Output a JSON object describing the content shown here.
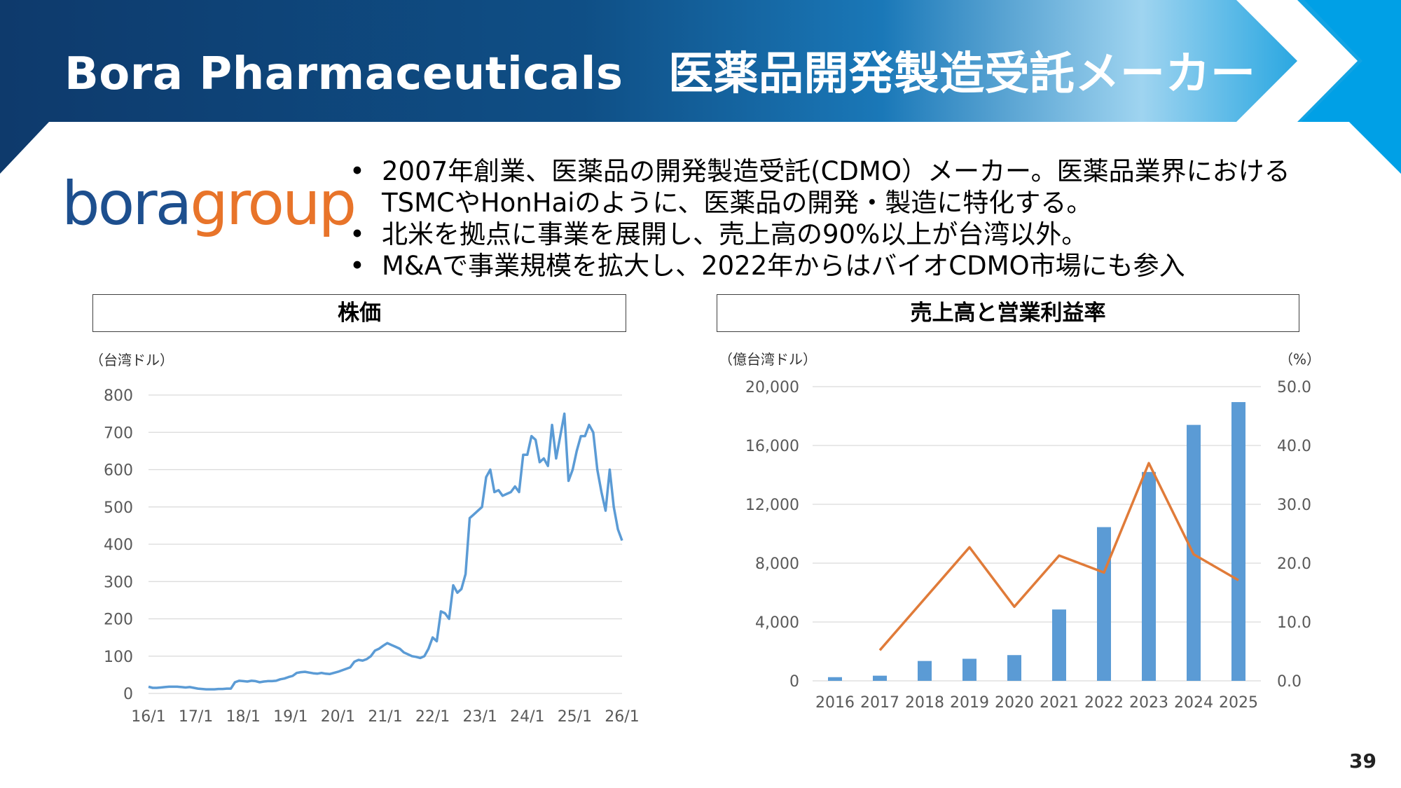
{
  "slide": {
    "title": "Bora Pharmaceuticals　医薬品開発製造受託メーカー",
    "logo": {
      "part1": "bora",
      "part2": "group"
    },
    "bullets": [
      "2007年創業、医薬品の開発製造受託(CDMO）メーカー。医薬品業界における",
      "TSMCやHonHaiのように、医薬品の開発・製造に特化する。",
      "北米を拠点に事業を展開し、売上高の90%以上が台湾以外。",
      "M&Aで事業規模を拡大し、2022年からはバイオCDMO市場にも参入"
    ],
    "page_number": "39",
    "colors": {
      "header_dark": "#0d3b6e",
      "header_light": "#29a8e0",
      "bar": "#5b9bd5",
      "line": "#e07b39",
      "stock_line": "#5b9bd5"
    }
  },
  "chart_data": [
    {
      "type": "line",
      "title": "株価",
      "ylabel": "（台湾ドル）",
      "ylim": [
        0,
        800
      ],
      "yticks": [
        "800",
        "700",
        "600",
        "500",
        "400",
        "300",
        "200",
        "100",
        "0"
      ],
      "xticks": [
        "16/1",
        "17/1",
        "18/1",
        "19/1",
        "20/1",
        "21/1",
        "22/1",
        "23/1",
        "24/1",
        "25/1",
        "26/1"
      ],
      "x_start": "16/1",
      "x_end": "26/1",
      "values": [
        18,
        15,
        15,
        16,
        17,
        18,
        18,
        18,
        17,
        16,
        17,
        15,
        13,
        12,
        11,
        11,
        11,
        12,
        12,
        13,
        13,
        30,
        34,
        33,
        32,
        34,
        33,
        30,
        32,
        33,
        33,
        34,
        38,
        40,
        44,
        47,
        55,
        57,
        58,
        56,
        54,
        53,
        55,
        53,
        52,
        55,
        58,
        62,
        66,
        70,
        85,
        90,
        88,
        92,
        100,
        115,
        120,
        128,
        135,
        130,
        125,
        120,
        110,
        105,
        100,
        98,
        95,
        100,
        120,
        150,
        140,
        220,
        215,
        200,
        290,
        270,
        280,
        320,
        470,
        480,
        490,
        500,
        580,
        600,
        540,
        545,
        530,
        535,
        540,
        555,
        540,
        640,
        640,
        690,
        680,
        620,
        630,
        610,
        720,
        630,
        690,
        750,
        570,
        600,
        650,
        690,
        690,
        720,
        700,
        600,
        540,
        490,
        600,
        500,
        440,
        410
      ]
    },
    {
      "type": "bar",
      "title": "売上高と営業利益率",
      "ylabel": "（億台湾ドル）",
      "y2label": "（%）",
      "categories": [
        "2016",
        "2017",
        "2018",
        "2019",
        "2020",
        "2021",
        "2022",
        "2023",
        "2024",
        "2025"
      ],
      "ylim": [
        0,
        20000
      ],
      "y2lim": [
        0,
        50
      ],
      "yticks": [
        "20,000",
        "16,000",
        "12,000",
        "8,000",
        "4,000",
        "0"
      ],
      "y2ticks": [
        "50.0",
        "40.0",
        "30.0",
        "20.0",
        "10.0",
        "0.0"
      ],
      "series": [
        {
          "values": [
            250,
            350,
            1350,
            1500,
            1750,
            4850,
            10450,
            14200,
            17400,
            18950
          ]
        },
        {
          "values": [
            null,
            5.2,
            null,
            22.7,
            12.6,
            21.3,
            18.4,
            37.0,
            21.5,
            17.1
          ]
        }
      ]
    }
  ]
}
